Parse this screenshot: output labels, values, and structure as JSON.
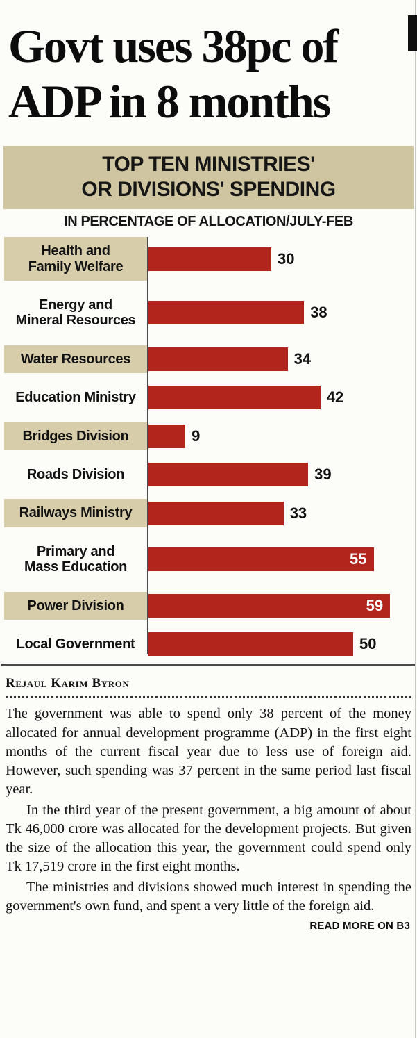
{
  "page": {
    "headline": "Govt uses 38pc of\nADP in 8 months"
  },
  "chart_heading": {
    "title_line1": "TOP TEN MINISTRIES'",
    "title_line2": "OR DIVISIONS' SPENDING",
    "subtitle": "IN PERCENTAGE OF ALLOCATION/JULY-FEB"
  },
  "chart_data": {
    "type": "bar",
    "orientation": "horizontal",
    "title": "TOP TEN MINISTRIES' OR DIVISIONS' SPENDING",
    "subtitle": "IN PERCENTAGE OF ALLOCATION/JULY-FEB",
    "value_unit": "percent of allocation, July-Feb",
    "xlim": [
      0,
      64
    ],
    "grid": false,
    "legend": false,
    "rows": [
      {
        "label": "Health and\nFamily Welfare",
        "value": 30,
        "value_inside": false
      },
      {
        "label": "Energy and\nMineral Resources",
        "value": 38,
        "value_inside": false
      },
      {
        "label": "Water Resources",
        "value": 34,
        "value_inside": false
      },
      {
        "label": "Education Ministry",
        "value": 42,
        "value_inside": false
      },
      {
        "label": "Bridges Division",
        "value": 9,
        "value_inside": false
      },
      {
        "label": "Roads Division",
        "value": 39,
        "value_inside": false
      },
      {
        "label": "Railways Ministry",
        "value": 33,
        "value_inside": false
      },
      {
        "label": "Primary and\nMass Education",
        "value": 55,
        "value_inside": true
      },
      {
        "label": "Power Division",
        "value": 59,
        "value_inside": true
      },
      {
        "label": "Local Government",
        "value": 50,
        "value_inside": false
      }
    ]
  },
  "colors": {
    "bar": "#b1251d",
    "label_shade": "#d7cdab",
    "heading_band": "#cfc5a0",
    "rule": "#4a4a4a"
  },
  "article": {
    "byline": "Rejaul Karim Byron",
    "paragraphs": [
      "The government was able to spend only 38 percent of the money allocated for annual development programme (ADP) in the first eight months of the current fiscal year due to less use of foreign aid. However, such spending was 37 percent in the same period last fiscal year.",
      "In the third year of the present government, a big amount of about Tk 46,000 crore was allocated for the development projects. But given the size of the allocation this year, the government could spend only Tk 17,519 crore in the first eight months.",
      "The ministries and divisions showed much interest in spending the government's own fund, and spent a very little of the foreign aid."
    ],
    "read_more": "READ MORE ON B3"
  }
}
